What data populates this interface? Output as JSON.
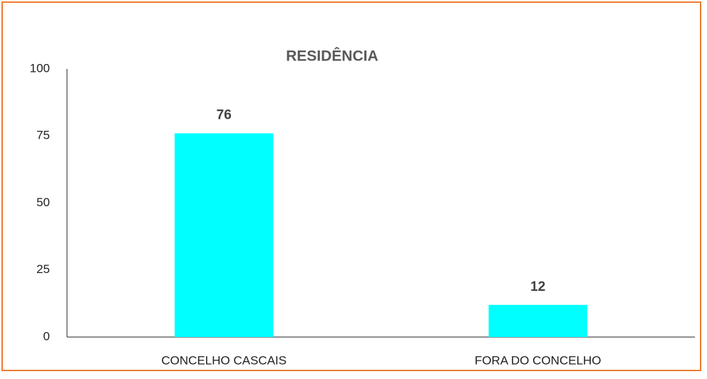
{
  "chart_data": {
    "type": "bar",
    "title": "RESIDÊNCIA",
    "categories": [
      "CONCELHO CASCAIS",
      "FORA DO CONCELHO"
    ],
    "values": [
      76,
      12
    ],
    "color": "#00ffff",
    "ylim": [
      0,
      100
    ],
    "yticks": [
      0,
      25,
      50,
      75,
      100
    ],
    "grid": false
  }
}
